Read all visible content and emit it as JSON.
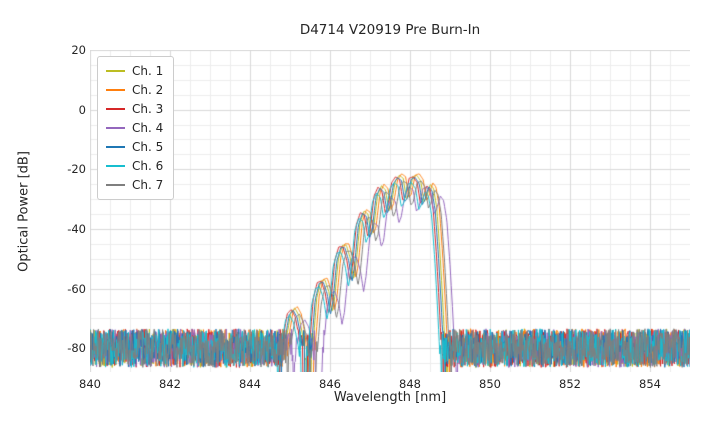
{
  "figure": {
    "title": "D4714 V20919 Pre Burn-In",
    "xlabel": "Wavelength [nm]",
    "ylabel": "Optical Power [dB]"
  },
  "chart_data": {
    "type": "line",
    "title": "D4714 V20919 Pre Burn-In",
    "xlabel": "Wavelength [nm]",
    "ylabel": "Optical Power [dB]",
    "xlim": [
      840,
      855
    ],
    "ylim": [
      -88,
      20
    ],
    "xticks": [
      840,
      842,
      844,
      846,
      848,
      850,
      852,
      854
    ],
    "yticks": [
      20,
      0,
      -20,
      -40,
      -60,
      -80
    ],
    "grid": {
      "shown": true,
      "minor_x_step_nm": 0.5,
      "minor_y_step_db": 5,
      "major_x_step_nm": 2,
      "major_y_step_db": 20,
      "major_color": "#d9d9d9",
      "minor_color": "#ededed"
    },
    "legend_position": "upper left",
    "noise_floor": {
      "mean_db": -80,
      "amplitude_db": 6.5,
      "sample_step_nm": 0.015
    },
    "envelope_points": [
      [
        844.85,
        -92
      ],
      [
        844.95,
        -76
      ],
      [
        845.05,
        -68
      ],
      [
        845.15,
        -66.5
      ],
      [
        845.25,
        -69
      ],
      [
        845.35,
        -76
      ],
      [
        845.45,
        -92
      ],
      [
        845.52,
        -99
      ],
      [
        845.6,
        -80
      ],
      [
        845.7,
        -63
      ],
      [
        845.8,
        -57.5
      ],
      [
        845.9,
        -57
      ],
      [
        846.0,
        -61
      ],
      [
        846.08,
        -68
      ],
      [
        846.14,
        -64
      ],
      [
        846.24,
        -50
      ],
      [
        846.34,
        -45.5
      ],
      [
        846.44,
        -45.5
      ],
      [
        846.54,
        -50
      ],
      [
        846.62,
        -57
      ],
      [
        846.68,
        -52
      ],
      [
        846.78,
        -38
      ],
      [
        846.88,
        -34
      ],
      [
        846.98,
        -35
      ],
      [
        847.06,
        -42
      ],
      [
        847.12,
        -40
      ],
      [
        847.22,
        -28.5
      ],
      [
        847.32,
        -25.5
      ],
      [
        847.42,
        -27
      ],
      [
        847.5,
        -34
      ],
      [
        847.56,
        -32
      ],
      [
        847.66,
        -24
      ],
      [
        847.76,
        -22
      ],
      [
        847.86,
        -23
      ],
      [
        847.94,
        -30
      ],
      [
        848.0,
        -29
      ],
      [
        848.1,
        -22.5
      ],
      [
        848.2,
        -22
      ],
      [
        848.3,
        -24
      ],
      [
        848.38,
        -31
      ],
      [
        848.44,
        -29.5
      ],
      [
        848.54,
        -25
      ],
      [
        848.62,
        -26.5
      ],
      [
        848.7,
        -33
      ],
      [
        848.78,
        -48
      ],
      [
        848.84,
        -62
      ],
      [
        848.9,
        -78
      ],
      [
        848.96,
        -95
      ]
    ],
    "series": [
      {
        "name": "Ch. 1",
        "color": "#bcbd22",
        "shift_nm": -0.03,
        "peak_offset_db": 0,
        "seed": 101
      },
      {
        "name": "Ch. 2",
        "color": "#ff7f0e",
        "shift_nm": 0.03,
        "peak_offset_db": 0.5,
        "seed": 202
      },
      {
        "name": "Ch. 3",
        "color": "#d62728",
        "shift_nm": -0.12,
        "peak_offset_db": -0.5,
        "seed": 303
      },
      {
        "name": "Ch. 4",
        "color": "#9467bd",
        "shift_nm": 0.22,
        "peak_offset_db": -4,
        "seed": 404
      },
      {
        "name": "Ch. 5",
        "color": "#1f77b4",
        "shift_nm": -0.07,
        "peak_offset_db": -0.8,
        "seed": 505
      },
      {
        "name": "Ch. 6",
        "color": "#17becf",
        "shift_nm": -0.16,
        "peak_offset_db": -2.5,
        "seed": 606
      },
      {
        "name": "Ch. 7",
        "color": "#7f7f7f",
        "shift_nm": 0.08,
        "peak_offset_db": -2,
        "seed": 707
      }
    ]
  }
}
